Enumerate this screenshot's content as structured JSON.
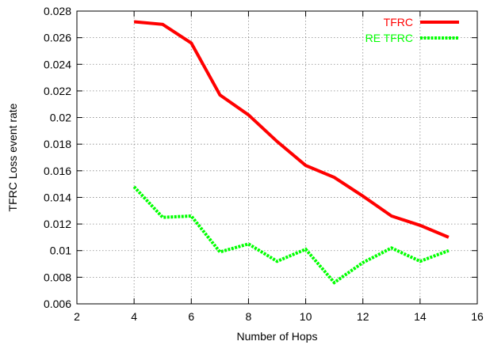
{
  "chart_data": {
    "type": "line",
    "title": "",
    "xlabel": "Number of Hops",
    "ylabel": "TFRC Loss event rate",
    "xlim": [
      2,
      16
    ],
    "ylim": [
      0.006,
      0.028
    ],
    "xticks": [
      2,
      4,
      6,
      8,
      10,
      12,
      14,
      16
    ],
    "xtick_labels": [
      "2",
      "4",
      "6",
      "8",
      "10",
      "12",
      "14",
      "16"
    ],
    "yticks": [
      0.006,
      0.008,
      0.01,
      0.012,
      0.014,
      0.016,
      0.018,
      0.02,
      0.022,
      0.024,
      0.026,
      0.028
    ],
    "ytick_labels": [
      "0.006",
      "0.008",
      "0.01",
      "0.012",
      "0.014",
      "0.016",
      "0.018",
      "0.02",
      "0.022",
      "0.024",
      "0.026",
      "0.028"
    ],
    "grid": true,
    "legend_position": "top-right",
    "x": [
      4,
      5,
      6,
      7,
      8,
      9,
      10,
      11,
      12,
      13,
      14,
      15
    ],
    "series": [
      {
        "name": "TFRC",
        "color": "#ff0000",
        "dash": "solid",
        "values": [
          0.0272,
          0.027,
          0.0256,
          0.0217,
          0.0202,
          0.0182,
          0.0164,
          0.0155,
          0.0141,
          0.0126,
          0.0119,
          0.011
        ]
      },
      {
        "name": "RE TFRC",
        "color": "#00ff00",
        "dash": "dotted",
        "values": [
          0.0148,
          0.0125,
          0.0126,
          0.0099,
          0.0105,
          0.0092,
          0.0101,
          0.0076,
          0.0091,
          0.0102,
          0.0092,
          0.01
        ]
      }
    ]
  }
}
